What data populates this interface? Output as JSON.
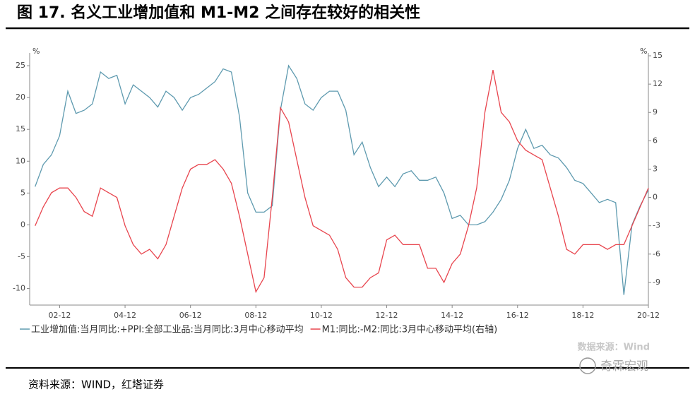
{
  "chart_data": {
    "type": "line",
    "title": "图 17. 名义工业增加值和 M1-M2 之间存在较好的相关性",
    "y_unit": "%",
    "y2_unit": "%",
    "x": [
      "02-03",
      "02-06",
      "02-09",
      "02-12",
      "03-03",
      "03-06",
      "03-09",
      "03-12",
      "04-03",
      "04-06",
      "04-09",
      "04-12",
      "05-03",
      "05-06",
      "05-09",
      "05-12",
      "06-03",
      "06-06",
      "06-09",
      "06-12",
      "07-03",
      "07-06",
      "07-09",
      "07-12",
      "08-03",
      "08-06",
      "08-09",
      "08-12",
      "09-03",
      "09-06",
      "09-09",
      "09-12",
      "10-03",
      "10-06",
      "10-09",
      "10-12",
      "11-03",
      "11-06",
      "11-09",
      "11-12",
      "12-03",
      "12-06",
      "12-09",
      "12-12",
      "13-03",
      "13-06",
      "13-09",
      "13-12",
      "14-03",
      "14-06",
      "14-09",
      "14-12",
      "15-03",
      "15-06",
      "15-09",
      "15-12",
      "16-03",
      "16-06",
      "16-09",
      "16-12",
      "17-03",
      "17-06",
      "17-09",
      "17-12",
      "18-03",
      "18-06",
      "18-09",
      "18-12",
      "19-03",
      "19-06",
      "19-09",
      "19-12",
      "20-03",
      "20-06",
      "20-09",
      "20-12"
    ],
    "xlim": [
      "02-01",
      "20-12"
    ],
    "xticks": [
      "02-12",
      "04-12",
      "06-12",
      "08-12",
      "10-12",
      "12-12",
      "14-12",
      "16-12",
      "18-12",
      "20-12"
    ],
    "ylim": [
      -12.6,
      27
    ],
    "yticks": [
      -10,
      -5,
      0,
      5,
      10,
      15,
      20,
      25
    ],
    "y2lim": [
      -11.4,
      15.3
    ],
    "y2ticks": [
      -9,
      -6,
      -3,
      0,
      3,
      6,
      9,
      12,
      15
    ],
    "series": [
      {
        "name": "工业增加值:当月同比:+PPI:全部工业品:当月同比:3月中心移动平均",
        "color": "#5e9aaf",
        "values": [
          6,
          9.5,
          11,
          14,
          21,
          17.5,
          18,
          19,
          24,
          23,
          23.5,
          19,
          22,
          21,
          20,
          18.5,
          21,
          20,
          18,
          20,
          20.5,
          21.5,
          22.5,
          24.5,
          24,
          17,
          5,
          2,
          2,
          3,
          18,
          25,
          23,
          19,
          18,
          20,
          21,
          21,
          18,
          11,
          13,
          9,
          6,
          7.5,
          6,
          8,
          8.5,
          7,
          7,
          7.5,
          5,
          1,
          1.5,
          0,
          0,
          0.5,
          2,
          4,
          7,
          12,
          15,
          12,
          12.5,
          11,
          10.5,
          9,
          7,
          6.5,
          5,
          3.5,
          4,
          3.5,
          -11,
          0,
          3,
          5.5
        ]
      },
      {
        "name": "M1:同比:-M2:同比:3月中心移动平均(右轴)",
        "color": "#e8454e",
        "axis": "y2",
        "values": [
          -3,
          -1,
          0.5,
          1,
          1,
          0,
          -1.5,
          -2,
          1,
          0.5,
          0,
          -3,
          -5,
          -6,
          -5.5,
          -6.5,
          -5,
          -2,
          1,
          3,
          3.5,
          3.5,
          4,
          3,
          1.5,
          -2,
          -6,
          -10,
          -8.5,
          0,
          9.5,
          8,
          4,
          0,
          -3,
          -3.5,
          -4,
          -5.5,
          -8.5,
          -9.5,
          -9.5,
          -8.5,
          -8,
          -4.5,
          -4,
          -5,
          -5,
          -5,
          -7.5,
          -7.5,
          -9,
          -7,
          -6,
          -3,
          1,
          9,
          13.5,
          9,
          8,
          6,
          5,
          4.5,
          4,
          1,
          -2,
          -5.5,
          -6,
          -5,
          -5,
          -5,
          -5.5,
          -5,
          -5,
          -3,
          -1,
          1
        ]
      }
    ],
    "watermark": "数据来源：Wind"
  },
  "footer": {
    "source": "资料来源：WIND，红塔证券",
    "brand": "奇霖宏观"
  }
}
